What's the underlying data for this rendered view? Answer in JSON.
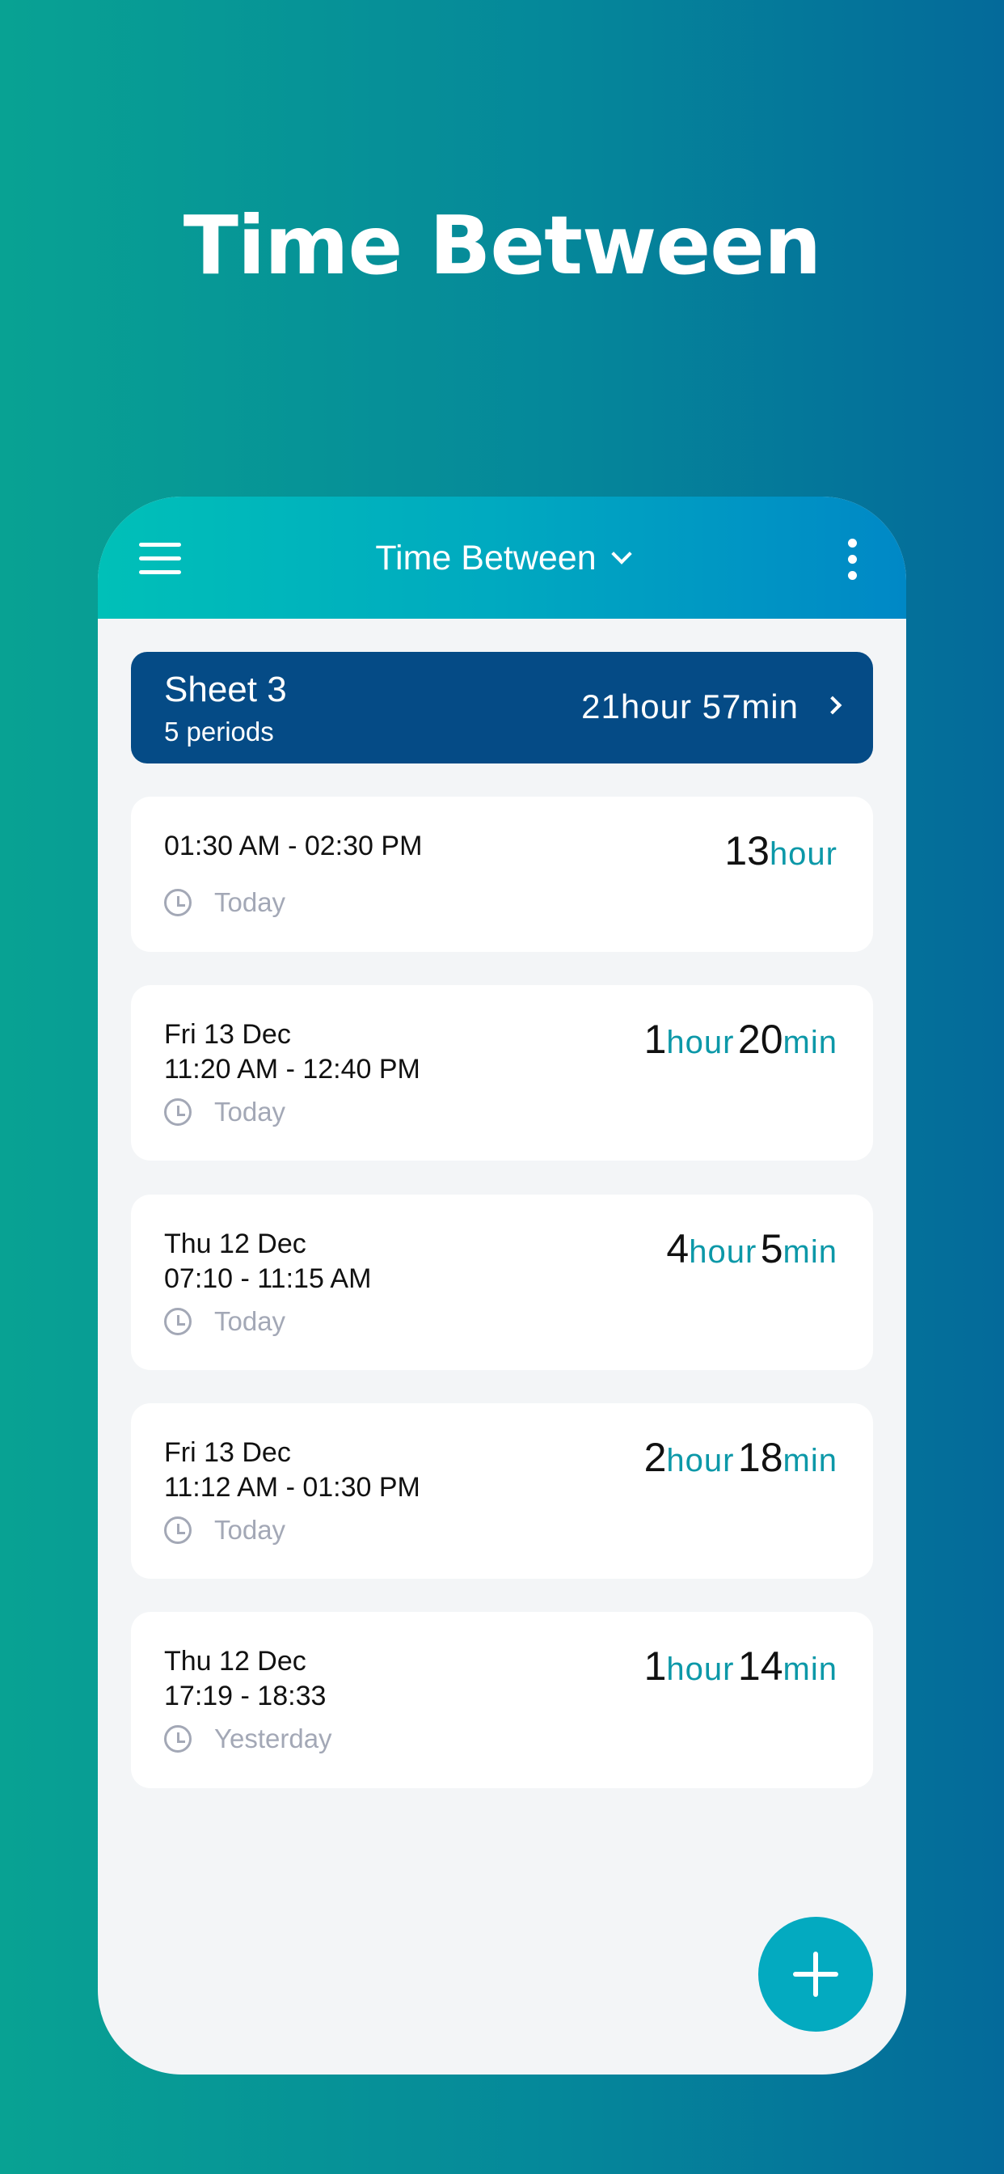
{
  "hero_title": "Time Between",
  "header": {
    "title": "Time Between",
    "menu_icon": "hamburger-icon",
    "more_icon": "more-vertical-icon"
  },
  "sheet": {
    "name": "Sheet 3",
    "periods": "5 periods",
    "total": "21hour 57min"
  },
  "periods": [
    {
      "date": "",
      "time": "01:30 AM - 02:30 PM",
      "relative": "Today",
      "hours": "13",
      "hour_unit": "hour",
      "minutes": "",
      "min_unit": ""
    },
    {
      "date": "Fri 13 Dec",
      "time": "11:20 AM - 12:40 PM",
      "relative": "Today",
      "hours": "1",
      "hour_unit": "hour",
      "minutes": "20",
      "min_unit": "min"
    },
    {
      "date": "Thu 12 Dec",
      "time": "07:10 - 11:15 AM",
      "relative": "Today",
      "hours": "4",
      "hour_unit": "hour",
      "minutes": "5",
      "min_unit": "min"
    },
    {
      "date": "Fri 13 Dec",
      "time": "11:12 AM - 01:30 PM",
      "relative": "Today",
      "hours": "2",
      "hour_unit": "hour",
      "minutes": "18",
      "min_unit": "min"
    },
    {
      "date": "Thu 12 Dec",
      "time": "17:19 - 18:33",
      "relative": "Yesterday",
      "hours": "1",
      "hour_unit": "hour",
      "minutes": "14",
      "min_unit": "min"
    }
  ],
  "colors": {
    "accent": "#0c98a8",
    "sheet_bg": "#054b86",
    "fab": "#03aac0"
  }
}
